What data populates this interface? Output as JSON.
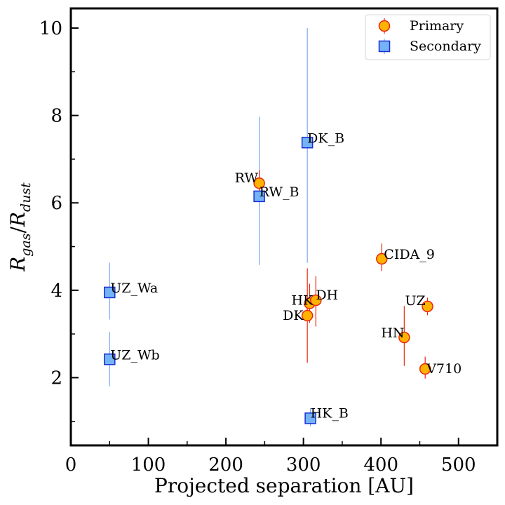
{
  "chart_data": {
    "type": "scatter",
    "xlabel": "Projected separation [AU]",
    "ylabel": {
      "base": "R",
      "num_sub": "gas",
      "sep": "/",
      "den_base": "R",
      "den_sub": "dust"
    },
    "xlim": [
      0,
      550
    ],
    "ylim": [
      0.45,
      10.45
    ],
    "x_ticks": [
      0,
      100,
      200,
      300,
      400,
      500
    ],
    "y_ticks": [
      2,
      4,
      6,
      8,
      10
    ],
    "x_minor_step": 50,
    "y_minor_step": 1,
    "grid": false,
    "legend_position": "top-right",
    "series": [
      {
        "name": "Primary",
        "marker": "circle",
        "face_color": "#ffb300",
        "edge_color": "#e8280c",
        "err_color": "#e8280c",
        "points": [
          {
            "label": "RW",
            "x": 243,
            "y": 6.45,
            "err_lo": 0.3,
            "err_hi": 0.3
          },
          {
            "label": "CIDA_9",
            "x": 401,
            "y": 4.72,
            "err_lo": 0.28,
            "err_hi": 0.35
          },
          {
            "label": "HK",
            "x": 308,
            "y": 3.7,
            "err_lo": 0.45,
            "err_hi": 0.45
          },
          {
            "label": "DH",
            "x": 316,
            "y": 3.77,
            "err_lo": 0.6,
            "err_hi": 0.55
          },
          {
            "label": "DK",
            "x": 305,
            "y": 3.42,
            "err_lo": 1.08,
            "err_hi": 1.08
          },
          {
            "label": "UZ",
            "x": 460,
            "y": 3.63,
            "err_lo": 0.2,
            "err_hi": 0.2
          },
          {
            "label": "HN",
            "x": 430,
            "y": 2.92,
            "err_lo": 0.65,
            "err_hi": 0.72
          },
          {
            "label": "V710",
            "x": 457,
            "y": 2.2,
            "err_lo": 0.22,
            "err_hi": 0.28
          }
        ]
      },
      {
        "name": "Secondary",
        "marker": "square",
        "face_color": "#74b4f6",
        "edge_color": "#1a2fd6",
        "err_color": "#79a9ee",
        "points": [
          {
            "label": "DK_B",
            "x": 305,
            "y": 7.38,
            "err_lo": 2.75,
            "err_hi": 2.62
          },
          {
            "label": "RW_B",
            "x": 243,
            "y": 6.15,
            "err_lo": 1.57,
            "err_hi": 1.82
          },
          {
            "label": "UZ_Wa",
            "x": 50,
            "y": 3.95,
            "err_lo": 0.62,
            "err_hi": 0.68
          },
          {
            "label": "UZ_Wb",
            "x": 50,
            "y": 2.42,
            "err_lo": 0.62,
            "err_hi": 0.63
          },
          {
            "label": "HK_B",
            "x": 309,
            "y": 1.07,
            "err_lo": 0.18,
            "err_hi": 0.23
          }
        ]
      }
    ]
  }
}
